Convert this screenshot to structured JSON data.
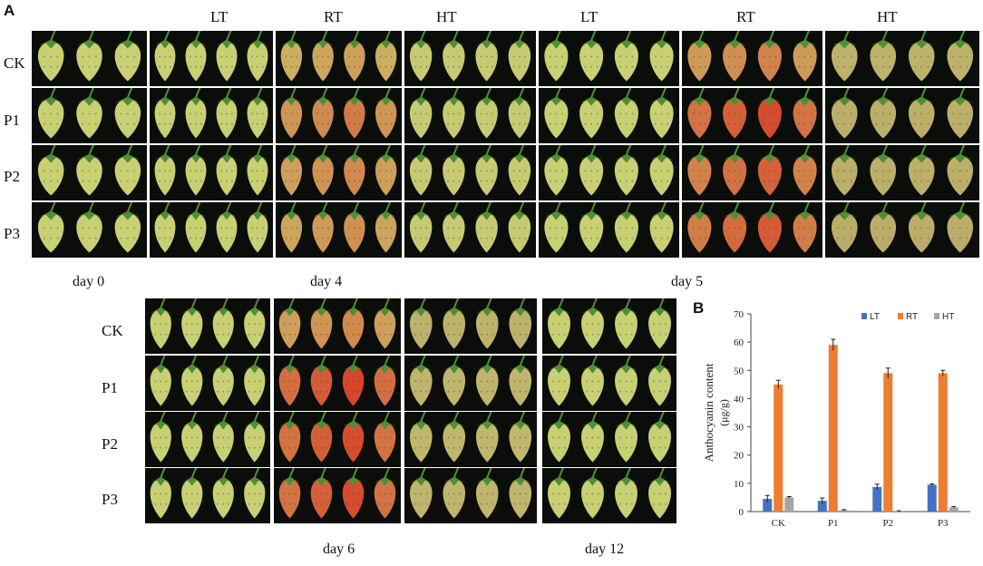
{
  "panel_labels": {
    "a": "A",
    "b": "B"
  },
  "top": {
    "col_headers": [
      "LT",
      "RT",
      "HT",
      "LT",
      "RT",
      "HT"
    ],
    "row_labels": [
      "CK",
      "P1",
      "P2",
      "P3"
    ],
    "day_labels": [
      "day 0",
      "day 4",
      "day 5"
    ]
  },
  "bottom": {
    "row_labels": [
      "CK",
      "P1",
      "P2",
      "P3"
    ],
    "day_labels": [
      "day 6",
      "day 12"
    ]
  },
  "colors": {
    "LT": "#4472c4",
    "RT": "#ed7d31",
    "HT": "#a5a5a5",
    "unripe": "#c9cf73",
    "red": "#d7452b",
    "rotten": "#b49a64",
    "leaf": "#4d8f35"
  },
  "chart_data": {
    "type": "bar",
    "title": "",
    "xlabel": "",
    "ylabel_line1": "Anthocyanin content",
    "ylabel_line2": "(μg/g)",
    "categories": [
      "CK",
      "P1",
      "P2",
      "P3"
    ],
    "series": [
      {
        "name": "LT",
        "values": [
          4.5,
          3.8,
          8.7,
          9.5
        ],
        "errors": [
          1.2,
          1.0,
          1.0,
          0.3
        ]
      },
      {
        "name": "RT",
        "values": [
          45,
          59,
          49,
          49
        ],
        "errors": [
          1.5,
          2.0,
          1.8,
          1.0
        ]
      },
      {
        "name": "HT",
        "values": [
          5,
          0.5,
          0.2,
          1.5
        ],
        "errors": [
          0.3,
          0.2,
          0.1,
          0.3
        ]
      }
    ],
    "yticks": [
      0,
      10,
      20,
      30,
      40,
      50,
      60,
      70
    ],
    "ylim": [
      0,
      70
    ],
    "legend": "top-right"
  }
}
